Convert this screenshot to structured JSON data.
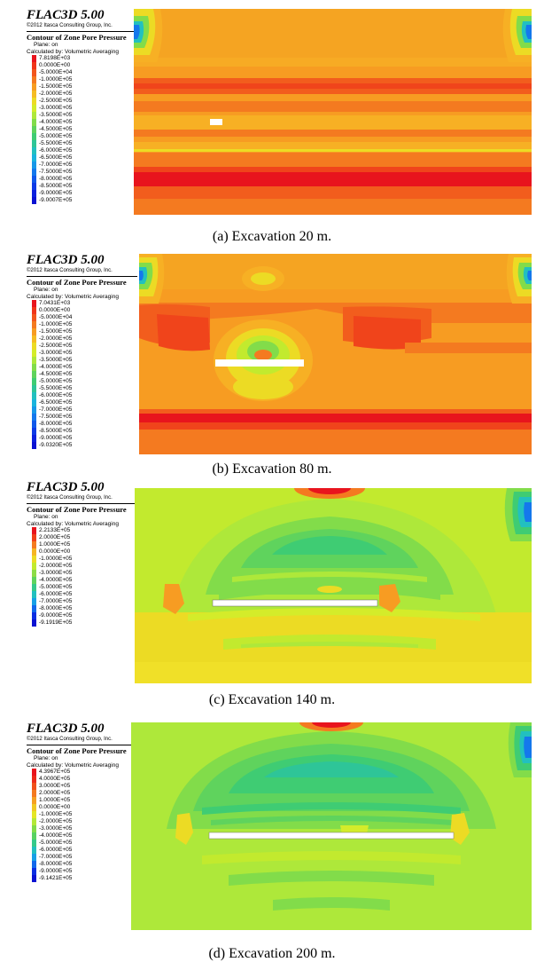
{
  "software_title": "FLAC3D 5.00",
  "copyright": "©2012 Itasca Consulting Group, Inc.",
  "contour_title": "Contour of Zone Pore Pressure",
  "plane_label": "Plane: on",
  "calculated_by": "Calculated by: Volumetric Averaging",
  "panels": [
    {
      "caption": "(a) Excavation 20 m.",
      "legend": [
        {
          "value": "7.8198E+03",
          "color": "#e8141d"
        },
        {
          "value": "0.0000E+00",
          "color": "#f0351a"
        },
        {
          "value": "-5.0000E+04",
          "color": "#f2561d"
        },
        {
          "value": "-1.0000E+05",
          "color": "#f47a20"
        },
        {
          "value": "-1.5000E+05",
          "color": "#f79c22"
        },
        {
          "value": "-2.0000E+05",
          "color": "#f5bc23"
        },
        {
          "value": "-2.5000E+05",
          "color": "#ecdb24"
        },
        {
          "value": "-3.0000E+05",
          "color": "#d4ec2a"
        },
        {
          "value": "-3.5000E+05",
          "color": "#aee83a"
        },
        {
          "value": "-4.0000E+05",
          "color": "#82dc4a"
        },
        {
          "value": "-4.5000E+05",
          "color": "#5fd35d"
        },
        {
          "value": "-5.0000E+05",
          "color": "#3fcc73"
        },
        {
          "value": "-5.5000E+05",
          "color": "#2ec598"
        },
        {
          "value": "-6.0000E+05",
          "color": "#22c0bf"
        },
        {
          "value": "-6.5000E+05",
          "color": "#1ab4dd"
        },
        {
          "value": "-7.0000E+05",
          "color": "#1798e8"
        },
        {
          "value": "-7.5000E+05",
          "color": "#1478ec"
        },
        {
          "value": "-8.0000E+05",
          "color": "#1158ea"
        },
        {
          "value": "-8.5000E+05",
          "color": "#0e3ae6"
        },
        {
          "value": "-9.0000E+05",
          "color": "#0b20de"
        },
        {
          "value": "-9.0007E+05",
          "color": "#0a12d2"
        }
      ]
    },
    {
      "caption": "(b) Excavation 80 m.",
      "legend": [
        {
          "value": "7.0431E+03",
          "color": "#e8141d"
        },
        {
          "value": "0.0000E+00",
          "color": "#f0351a"
        },
        {
          "value": "-5.0000E+04",
          "color": "#f2561d"
        },
        {
          "value": "-1.0000E+05",
          "color": "#f47a20"
        },
        {
          "value": "-1.5000E+05",
          "color": "#f79c22"
        },
        {
          "value": "-2.0000E+05",
          "color": "#f5bc23"
        },
        {
          "value": "-2.5000E+05",
          "color": "#ecdb24"
        },
        {
          "value": "-3.0000E+05",
          "color": "#d4ec2a"
        },
        {
          "value": "-3.5000E+05",
          "color": "#aee83a"
        },
        {
          "value": "-4.0000E+05",
          "color": "#82dc4a"
        },
        {
          "value": "-4.5000E+05",
          "color": "#5fd35d"
        },
        {
          "value": "-5.0000E+05",
          "color": "#3fcc73"
        },
        {
          "value": "-5.5000E+05",
          "color": "#2ec598"
        },
        {
          "value": "-6.0000E+05",
          "color": "#22c0bf"
        },
        {
          "value": "-6.5000E+05",
          "color": "#1ab4dd"
        },
        {
          "value": "-7.0000E+05",
          "color": "#1798e8"
        },
        {
          "value": "-7.5000E+05",
          "color": "#1478ec"
        },
        {
          "value": "-8.0000E+05",
          "color": "#1158ea"
        },
        {
          "value": "-8.5000E+05",
          "color": "#0e3ae6"
        },
        {
          "value": "-9.0000E+05",
          "color": "#0b20de"
        },
        {
          "value": "-9.0320E+05",
          "color": "#0a12d2"
        }
      ]
    },
    {
      "caption": "(c) Excavation 140 m.",
      "legend": [
        {
          "value": "2.2133E+05",
          "color": "#e8141d"
        },
        {
          "value": "2.0000E+05",
          "color": "#f0401a"
        },
        {
          "value": "1.0000E+05",
          "color": "#f47a20"
        },
        {
          "value": "0.0000E+00",
          "color": "#f5b523"
        },
        {
          "value": "-1.0000E+05",
          "color": "#ecdb24"
        },
        {
          "value": "-2.0000E+05",
          "color": "#c2ea2e"
        },
        {
          "value": "-3.0000E+05",
          "color": "#8cdc47"
        },
        {
          "value": "-4.0000E+05",
          "color": "#5fd35d"
        },
        {
          "value": "-5.0000E+05",
          "color": "#35c98a"
        },
        {
          "value": "-6.0000E+05",
          "color": "#22c0bf"
        },
        {
          "value": "-7.0000E+05",
          "color": "#17a0e6"
        },
        {
          "value": "-8.0000E+05",
          "color": "#1268eb"
        },
        {
          "value": "-9.0000E+05",
          "color": "#0c2ee2"
        },
        {
          "value": "-9.1919E+05",
          "color": "#0a12d2"
        }
      ]
    },
    {
      "caption": "(d) Excavation 200 m.",
      "legend": [
        {
          "value": "4.3967E+05",
          "color": "#e8141d"
        },
        {
          "value": "4.0000E+05",
          "color": "#ec2a1b"
        },
        {
          "value": "3.0000E+05",
          "color": "#f0501b"
        },
        {
          "value": "2.0000E+05",
          "color": "#f47a20"
        },
        {
          "value": "1.0000E+05",
          "color": "#f5a022"
        },
        {
          "value": "0.0000E+00",
          "color": "#f0c823"
        },
        {
          "value": "-1.0000E+05",
          "color": "#e4e626"
        },
        {
          "value": "-2.0000E+05",
          "color": "#b4e838"
        },
        {
          "value": "-3.0000E+05",
          "color": "#82dc4a"
        },
        {
          "value": "-4.0000E+05",
          "color": "#58d262"
        },
        {
          "value": "-5.0000E+05",
          "color": "#35c98a"
        },
        {
          "value": "-6.0000E+05",
          "color": "#22c0bf"
        },
        {
          "value": "-7.0000E+05",
          "color": "#17a0e6"
        },
        {
          "value": "-8.0000E+05",
          "color": "#1268eb"
        },
        {
          "value": "-9.0000E+05",
          "color": "#0c2ee2"
        },
        {
          "value": "-9.1421E+05",
          "color": "#0a12d2"
        }
      ]
    }
  ]
}
